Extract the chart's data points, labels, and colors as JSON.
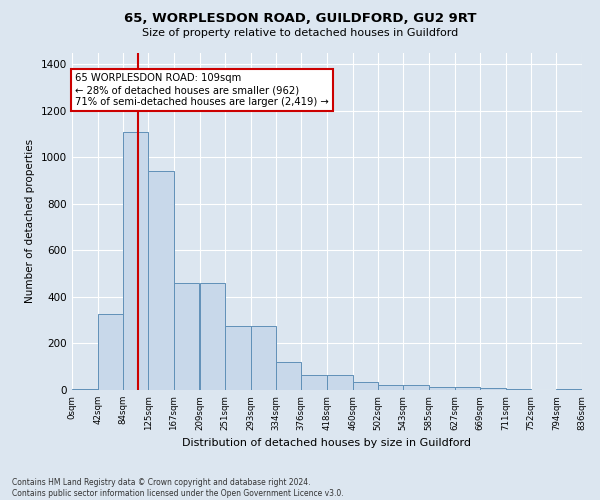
{
  "title1": "65, WORPLESDON ROAD, GUILDFORD, GU2 9RT",
  "title2": "Size of property relative to detached houses in Guildford",
  "xlabel": "Distribution of detached houses by size in Guildford",
  "ylabel": "Number of detached properties",
  "footnote1": "Contains HM Land Registry data © Crown copyright and database right 2024.",
  "footnote2": "Contains public sector information licensed under the Open Government Licence v3.0.",
  "bar_color": "#c8d8ea",
  "bar_edge_color": "#6090b8",
  "background_color": "#dce6f0",
  "fig_background_color": "#dce6f0",
  "grid_color": "#ffffff",
  "annotation_box_color": "#ffffff",
  "annotation_border_color": "#cc0000",
  "red_line_color": "#cc0000",
  "property_size": 109,
  "annotation_line1": "65 WORPLESDON ROAD: 109sqm",
  "annotation_line2": "← 28% of detached houses are smaller (962)",
  "annotation_line3": "71% of semi-detached houses are larger (2,419) →",
  "bin_edges": [
    0,
    42,
    84,
    125,
    167,
    209,
    251,
    293,
    334,
    376,
    418,
    460,
    502,
    543,
    585,
    627,
    669,
    711,
    752,
    794,
    836
  ],
  "bin_labels": [
    "0sqm",
    "42sqm",
    "84sqm",
    "125sqm",
    "167sqm",
    "209sqm",
    "251sqm",
    "293sqm",
    "334sqm",
    "376sqm",
    "418sqm",
    "460sqm",
    "502sqm",
    "543sqm",
    "585sqm",
    "627sqm",
    "669sqm",
    "711sqm",
    "752sqm",
    "794sqm",
    "836sqm"
  ],
  "bar_heights": [
    5,
    325,
    1110,
    940,
    460,
    460,
    275,
    275,
    120,
    65,
    65,
    35,
    20,
    20,
    15,
    15,
    10,
    5,
    0,
    5
  ],
  "ylim": [
    0,
    1450
  ],
  "yticks": [
    0,
    200,
    400,
    600,
    800,
    1000,
    1200,
    1400
  ]
}
